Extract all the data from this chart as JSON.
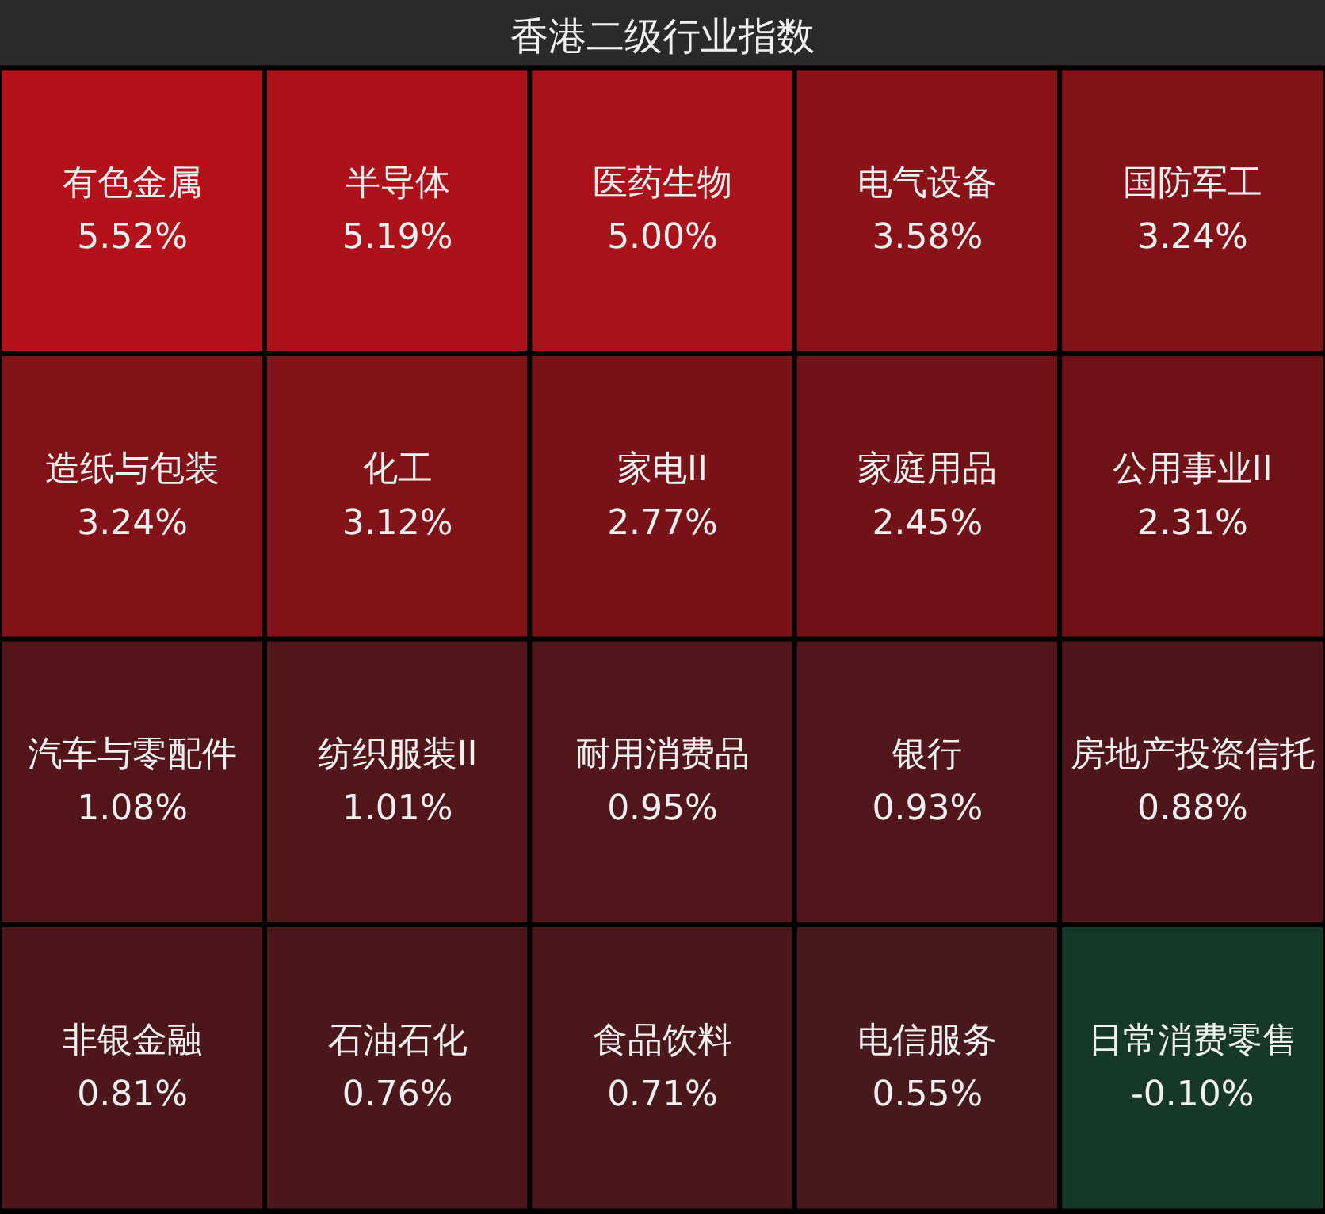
{
  "chart_data": {
    "type": "other",
    "title": "香港二级行业指数",
    "categories": [
      "有色金属",
      "半导体",
      "医药生物",
      "电气设备",
      "国防军工",
      "造纸与包装",
      "化工",
      "家电II",
      "家庭用品",
      "公用事业II",
      "汽车与零配件",
      "纺织服装II",
      "耐用消费品",
      "银行",
      "房地产投资信托",
      "非银金融",
      "石油石化",
      "食品饮料",
      "电信服务",
      "日常消费零售"
    ],
    "values": [
      5.52,
      5.19,
      5.0,
      3.58,
      3.24,
      3.24,
      3.12,
      2.77,
      2.45,
      2.31,
      1.08,
      1.01,
      0.95,
      0.93,
      0.88,
      0.81,
      0.76,
      0.71,
      0.55,
      -0.1
    ],
    "value_labels": [
      "5.52%",
      "5.19%",
      "5.00%",
      "3.58%",
      "3.24%",
      "3.24%",
      "3.12%",
      "2.77%",
      "2.45%",
      "2.31%",
      "1.08%",
      "1.01%",
      "0.95%",
      "0.93%",
      "0.88%",
      "0.81%",
      "0.76%",
      "0.71%",
      "0.55%",
      "-0.10%"
    ]
  }
}
